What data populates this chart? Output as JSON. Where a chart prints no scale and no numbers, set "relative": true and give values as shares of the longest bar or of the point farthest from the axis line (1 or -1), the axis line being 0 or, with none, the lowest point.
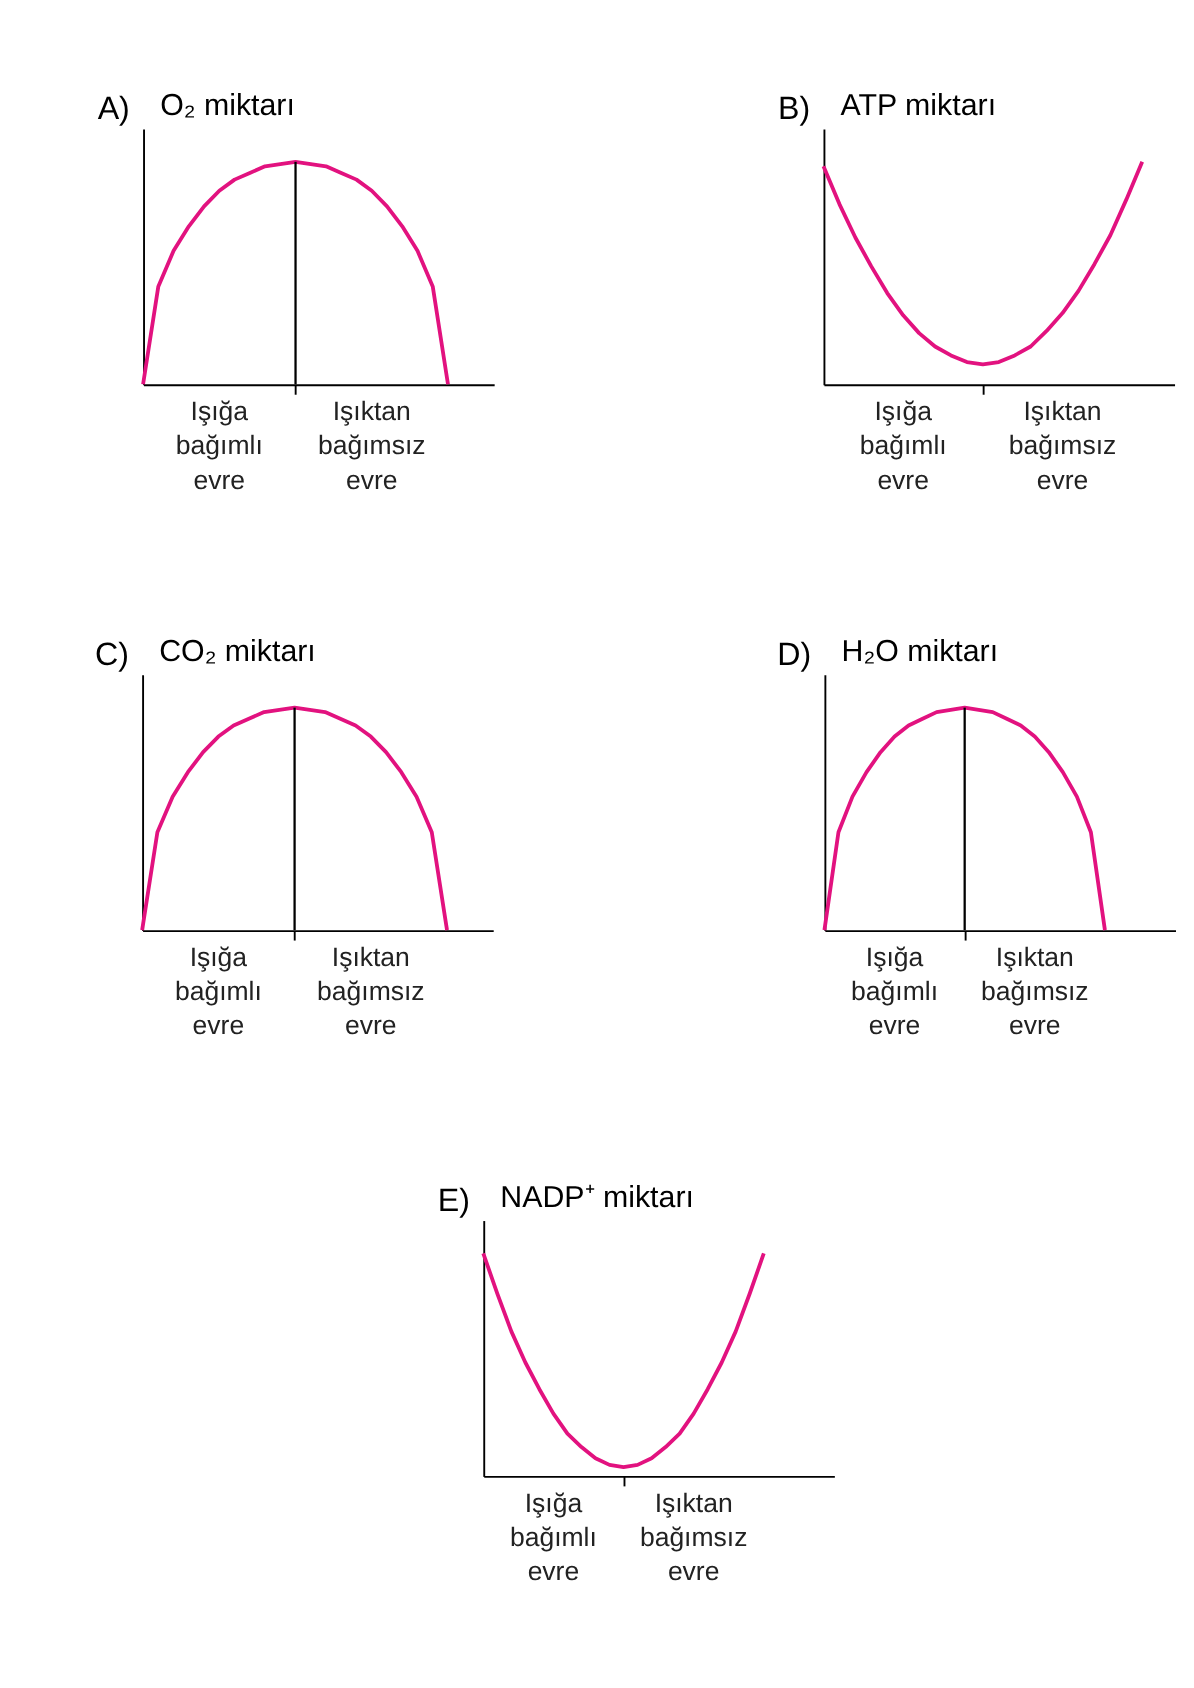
{
  "chart_data": [
    {
      "type": "line",
      "relative": true,
      "title": "A)",
      "ylabel": "O₂ miktarı",
      "tick_labels": false,
      "grid": false,
      "categories": [
        null,
        null,
        null,
        null,
        null,
        null,
        null,
        null,
        null,
        null,
        null,
        null,
        null,
        null,
        null,
        null,
        null,
        null,
        null,
        null,
        null,
        null,
        null,
        null
      ],
      "series": [
        {
          "color": "#e2127f",
          "values": [
            0,
            0.44,
            0.6,
            0.71,
            0.8,
            0.87,
            0.92,
            0.95,
            0.98,
            0.99,
            1,
            0.99,
            0.98,
            0.95,
            0.92,
            0.87,
            0.8,
            0.71,
            0.6,
            0.44,
            0,
            null,
            null,
            null
          ]
        }
      ],
      "annotations": [
        "Işığa bağımlı evre",
        "Işıktan bağımsız evre"
      ]
    },
    {
      "type": "line",
      "relative": true,
      "title": "B)",
      "ylabel": "ATP miktarı",
      "tick_labels": false,
      "grid": false,
      "categories": [
        null,
        null,
        null,
        null,
        null,
        null,
        null,
        null,
        null,
        null,
        null,
        null,
        null,
        null,
        null,
        null,
        null,
        null,
        null,
        null,
        null,
        null,
        null
      ],
      "series": [
        {
          "color": "#e2127f",
          "values": [
            0.98,
            0.81,
            0.66,
            0.53,
            0.41,
            0.31,
            0.23,
            0.17,
            0.13,
            0.1,
            0.09,
            0.1,
            0.13,
            0.17,
            0.24,
            0.32,
            0.42,
            0.54,
            0.67,
            0.83,
            1,
            null,
            null
          ]
        }
      ],
      "annotations": [
        "Işığa bağımlı evre",
        "Işıktan bağımsız evre"
      ]
    },
    {
      "type": "line",
      "relative": true,
      "title": "C)",
      "ylabel": "CO₂ miktarı",
      "tick_labels": false,
      "grid": false,
      "categories": [
        null,
        null,
        null,
        null,
        null,
        null,
        null,
        null,
        null,
        null,
        null,
        null,
        null,
        null,
        null,
        null,
        null,
        null,
        null,
        null,
        null,
        null,
        null,
        null
      ],
      "series": [
        {
          "color": "#e2127f",
          "values": [
            0,
            0.44,
            0.6,
            0.71,
            0.8,
            0.87,
            0.92,
            0.95,
            0.98,
            0.99,
            1,
            0.99,
            0.98,
            0.95,
            0.92,
            0.87,
            0.8,
            0.71,
            0.6,
            0.44,
            0,
            null,
            null,
            null
          ]
        }
      ],
      "annotations": [
        "Işığa bağımlı evre",
        "Işıktan bağımsız evre"
      ]
    },
    {
      "type": "line",
      "relative": true,
      "title": "D)",
      "ylabel": "H₂O miktarı",
      "tick_labels": false,
      "grid": false,
      "categories": [
        null,
        null,
        null,
        null,
        null,
        null,
        null,
        null,
        null,
        null,
        null,
        null,
        null,
        null,
        null,
        null,
        null,
        null,
        null,
        null,
        null,
        null,
        null,
        null,
        null,
        null
      ],
      "series": [
        {
          "color": "#e2127f",
          "values": [
            0,
            0.44,
            0.6,
            0.71,
            0.8,
            0.87,
            0.92,
            0.95,
            0.98,
            0.99,
            1,
            0.99,
            0.98,
            0.95,
            0.92,
            0.87,
            0.8,
            0.71,
            0.6,
            0.44,
            0,
            null,
            null,
            null,
            null,
            null
          ]
        }
      ],
      "annotations": [
        "Işığa bağımlı evre",
        "Işıktan bağımsız evre"
      ]
    },
    {
      "type": "line",
      "relative": true,
      "title": "E)",
      "ylabel": "NADP⁺ miktarı",
      "tick_labels": false,
      "grid": false,
      "categories": [
        null,
        null,
        null,
        null,
        null,
        null,
        null,
        null,
        null,
        null,
        null,
        null,
        null,
        null,
        null,
        null,
        null,
        null,
        null,
        null,
        null,
        null,
        null,
        null,
        null,
        null
      ],
      "series": [
        {
          "color": "#e2127f",
          "values": [
            1,
            0.82,
            0.65,
            0.51,
            0.39,
            0.28,
            0.19,
            0.13,
            0.08,
            0.05,
            0.04,
            0.05,
            0.08,
            0.13,
            0.19,
            0.28,
            0.39,
            0.51,
            0.65,
            0.82,
            1,
            null,
            null,
            null,
            null,
            null
          ]
        }
      ],
      "annotations": [
        "Işığa bağımlı evre",
        "Işıktan bağımsız evre"
      ]
    }
  ]
}
